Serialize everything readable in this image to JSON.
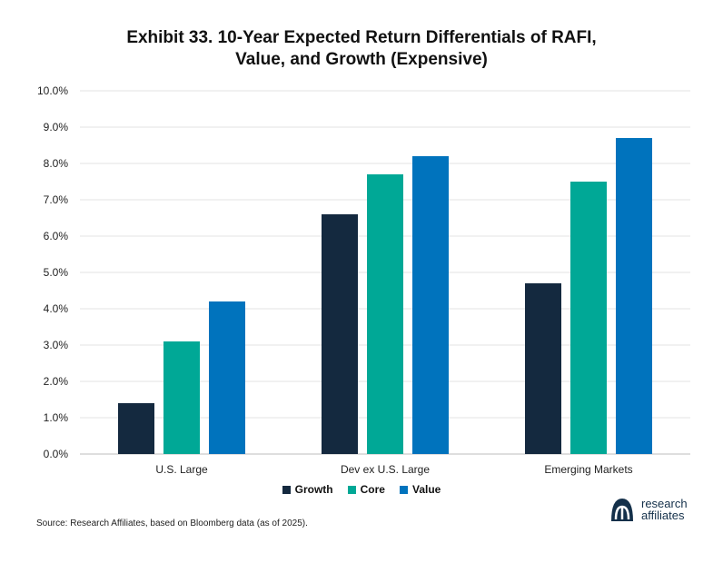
{
  "title_lines": [
    "Exhibit 33. 10-Year Expected Return Differentials of RAFI,",
    "Value, and Growth (Expensive)"
  ],
  "colors": {
    "Growth": "#14293f",
    "Core": "#00a896",
    "Value": "#0073bd",
    "grid": "#e3e3e3",
    "axis": "#bdbdbd"
  },
  "chart_data": {
    "type": "bar",
    "title": "Exhibit 33. 10-Year Expected Return Differentials of RAFI, Value, and Growth (Expensive)",
    "categories": [
      "U.S. Large",
      "Dev ex U.S. Large",
      "Emerging Markets"
    ],
    "series": [
      {
        "name": "Growth",
        "values": [
          1.4,
          6.6,
          4.7
        ]
      },
      {
        "name": "Core",
        "values": [
          3.1,
          7.7,
          7.5
        ]
      },
      {
        "name": "Value",
        "values": [
          4.2,
          8.2,
          8.7
        ]
      }
    ],
    "ylim": [
      0,
      10
    ],
    "yticks": [
      "0.0%",
      "1.0%",
      "2.0%",
      "3.0%",
      "4.0%",
      "5.0%",
      "6.0%",
      "7.0%",
      "8.0%",
      "9.0%",
      "10.0%"
    ],
    "xlabel": "",
    "ylabel": "",
    "grid": true,
    "legend": "bottom-center"
  },
  "source": "Source: Research Affiliates, based on Bloomberg data (as of 2025).",
  "logo": {
    "line1": "research",
    "line2": "affiliates",
    "mark": "ra-logo-icon"
  }
}
